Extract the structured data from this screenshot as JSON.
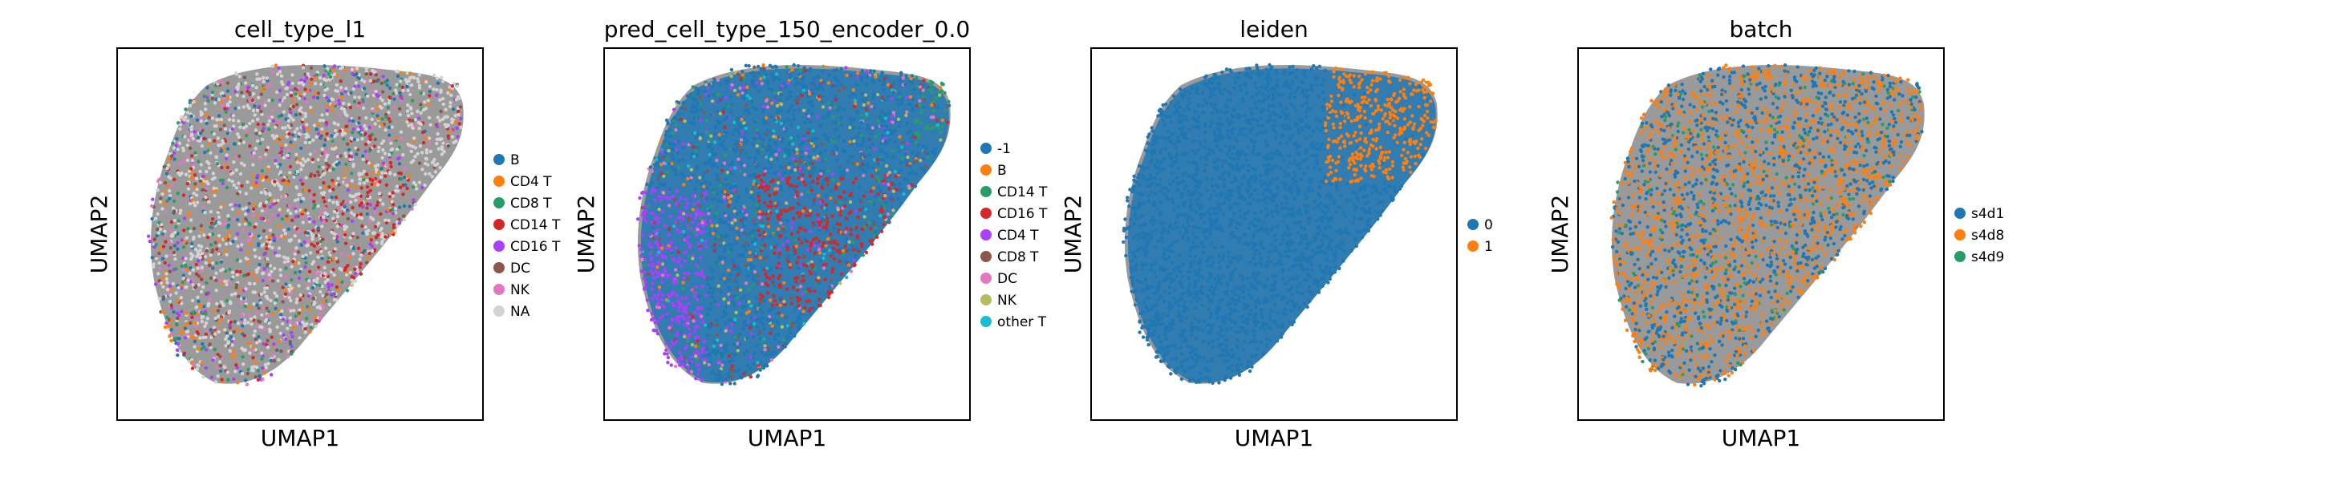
{
  "chart_data": [
    {
      "type": "scatter",
      "title": "cell_type_l1",
      "xlabel": "UMAP1",
      "ylabel": "UMAP2",
      "grid": false,
      "legend": "right",
      "dominant": null,
      "legend_entries": [
        {
          "label": "B",
          "color": "#1f77b4"
        },
        {
          "label": "CD4 T",
          "color": "#ff7f0e"
        },
        {
          "label": "CD8 T",
          "color": "#279e68"
        },
        {
          "label": "CD14 T",
          "color": "#d62728"
        },
        {
          "label": "CD16 T",
          "color": "#aa40fc"
        },
        {
          "label": "DC",
          "color": "#8c564b"
        },
        {
          "label": "NK",
          "color": "#e377c2"
        },
        {
          "label": "NA",
          "color": "#d3d3d3"
        }
      ]
    },
    {
      "type": "scatter",
      "title": "pred_cell_type_150_encoder_0.0",
      "xlabel": "UMAP1",
      "ylabel": "UMAP2",
      "grid": false,
      "legend": "right",
      "dominant": "#1f77b4",
      "legend_entries": [
        {
          "label": "-1",
          "color": "#1f77b4"
        },
        {
          "label": "B",
          "color": "#ff7f0e"
        },
        {
          "label": "CD14 T",
          "color": "#279e68"
        },
        {
          "label": "CD16 T",
          "color": "#d62728"
        },
        {
          "label": "CD4 T",
          "color": "#aa40fc"
        },
        {
          "label": "CD8 T",
          "color": "#8c564b"
        },
        {
          "label": "DC",
          "color": "#e377c2"
        },
        {
          "label": "NK",
          "color": "#b5bd61"
        },
        {
          "label": "other T",
          "color": "#17becf"
        }
      ]
    },
    {
      "type": "scatter",
      "title": "leiden",
      "xlabel": "UMAP1",
      "ylabel": "UMAP2",
      "grid": false,
      "legend": "right",
      "dominant": "#1f77b4",
      "legend_entries": [
        {
          "label": "0",
          "color": "#1f77b4"
        },
        {
          "label": "1",
          "color": "#ff7f0e"
        }
      ]
    },
    {
      "type": "scatter",
      "title": "batch",
      "xlabel": "UMAP1",
      "ylabel": "UMAP2",
      "grid": false,
      "legend": "right",
      "dominant": null,
      "legend_entries": [
        {
          "label": "s4d1",
          "color": "#1f77b4"
        },
        {
          "label": "s4d8",
          "color": "#ff7f0e"
        },
        {
          "label": "s4d9",
          "color": "#279e68"
        }
      ]
    }
  ]
}
